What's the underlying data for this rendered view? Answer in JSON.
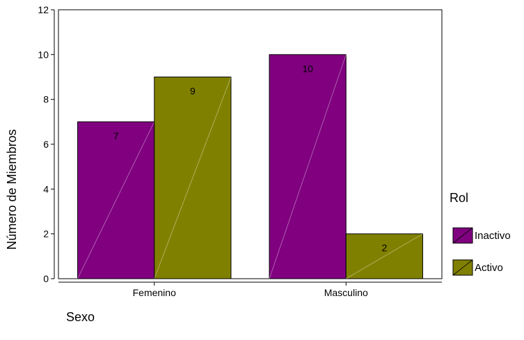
{
  "chart_data": {
    "type": "bar",
    "categories": [
      "Femenino",
      "Masculino"
    ],
    "series": [
      {
        "name": "Inactivo",
        "values": [
          7,
          10
        ],
        "color": "#800080"
      },
      {
        "name": "Activo",
        "values": [
          9,
          2
        ],
        "color": "#808000"
      }
    ],
    "xlabel": "Sexo",
    "ylabel": "Número de Miembros",
    "ylim": [
      0,
      12
    ],
    "yticks": [
      0,
      2,
      4,
      6,
      8,
      10,
      12
    ],
    "legend_title": "Rol",
    "legend_position": "right",
    "grid": false,
    "data_labels": true
  }
}
